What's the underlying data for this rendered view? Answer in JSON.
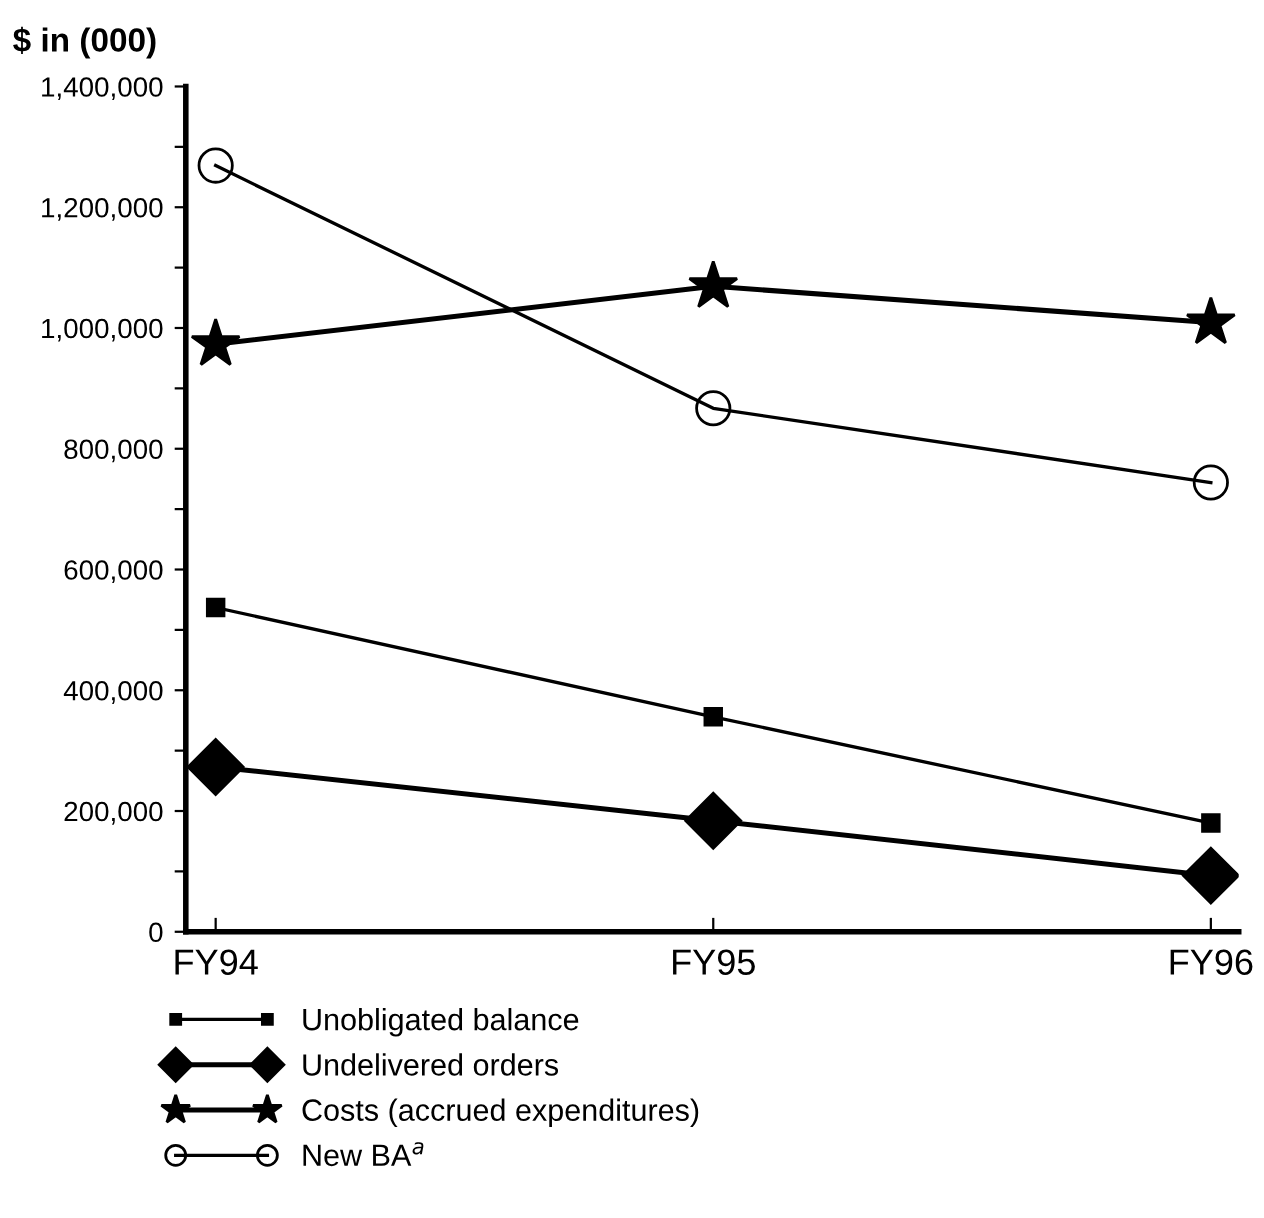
{
  "chart_data": {
    "type": "line",
    "ylabel": "$ in (000)",
    "categories": [
      "FY94",
      "FY95",
      "FY96"
    ],
    "ylim": [
      0,
      1400000
    ],
    "yticks": [
      {
        "value": 0,
        "label": "0"
      },
      {
        "value": 100000,
        "label": null
      },
      {
        "value": 200000,
        "label": "200,000"
      },
      {
        "value": 300000,
        "label": null
      },
      {
        "value": 400000,
        "label": "400,000"
      },
      {
        "value": 500000,
        "label": null
      },
      {
        "value": 600000,
        "label": "600,000"
      },
      {
        "value": 700000,
        "label": null
      },
      {
        "value": 800000,
        "label": "800,000"
      },
      {
        "value": 900000,
        "label": null
      },
      {
        "value": 1000000,
        "label": "1,000,000"
      },
      {
        "value": 1100000,
        "label": null
      },
      {
        "value": 1200000,
        "label": "1,200,000"
      },
      {
        "value": 1300000,
        "label": null
      },
      {
        "value": 1400000,
        "label": "1,400,000"
      }
    ],
    "grid": false,
    "legend": "bottom",
    "line_style": "solid",
    "series": [
      {
        "name": "Unobligated balance",
        "color": "#000000",
        "marker": "square",
        "values": [
          537000,
          356000,
          180000
        ]
      },
      {
        "name": "Undelivered orders",
        "color": "#000000",
        "marker": "diamond",
        "values": [
          273000,
          184000,
          93000
        ]
      },
      {
        "name": "Costs (accrued expenditures)",
        "color": "#000000",
        "marker": "star",
        "values": [
          973000,
          1069000,
          1009000
        ]
      },
      {
        "name": "New BA$^{a}$",
        "color": "#000000",
        "marker": "circle",
        "values": [
          1269000,
          867000,
          744000
        ]
      }
    ]
  }
}
